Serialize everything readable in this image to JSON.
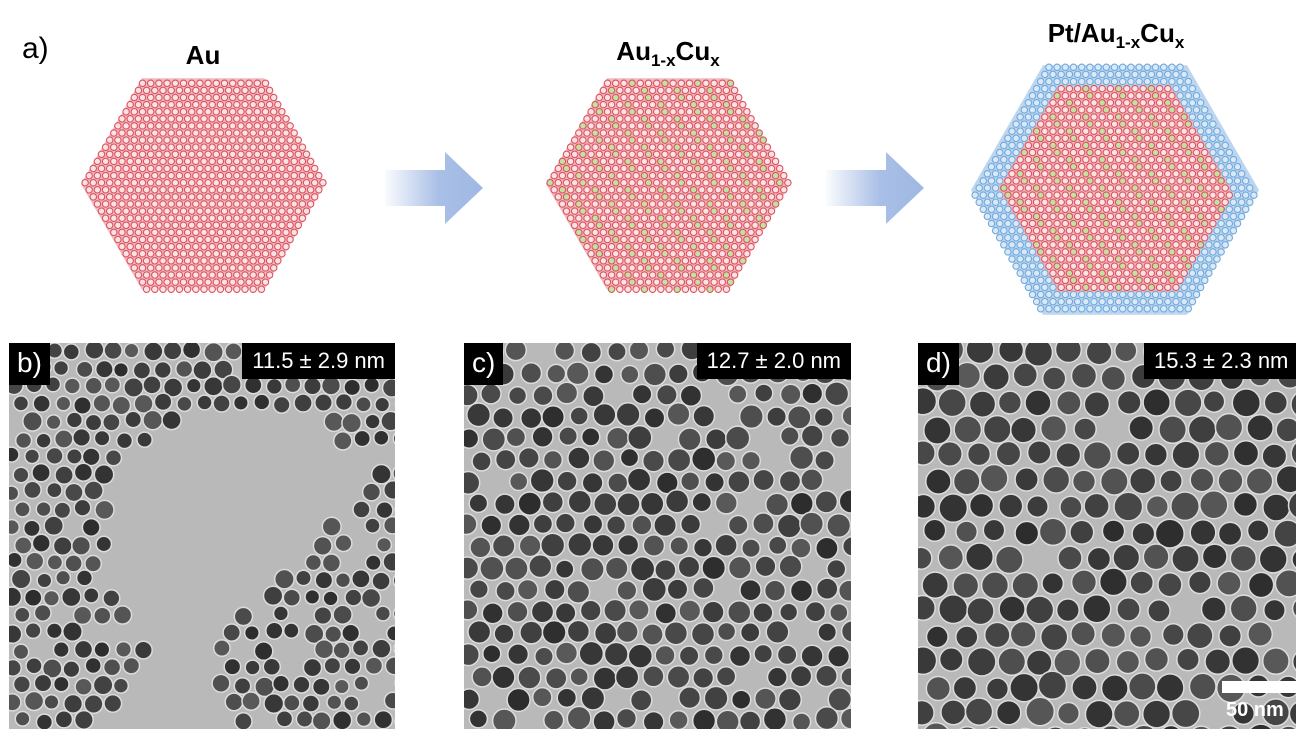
{
  "figure": {
    "panel_a_label": "a)",
    "stages": [
      {
        "base": "Au",
        "sub1": "",
        "mid": "",
        "sub2": "",
        "shell": false,
        "alloy": false
      },
      {
        "base": "Au",
        "sub1": "1-x",
        "mid": "Cu",
        "sub2": "x",
        "shell": false,
        "alloy": true
      },
      {
        "base": "Pt/Au",
        "sub1": "1-x",
        "mid": "Cu",
        "sub2": "x",
        "shell": true,
        "alloy": true
      }
    ],
    "tem_panels": [
      {
        "label": "b)",
        "size": "11.5 ± 2.9 nm"
      },
      {
        "label": "c)",
        "size": "12.7 ± 2.0 nm"
      },
      {
        "label": "d)",
        "size": "15.3 ± 2.3 nm"
      }
    ],
    "scale_bar": "50 nm",
    "colors": {
      "au_atom": "#d9535f",
      "au_fill": "#f2b8bd",
      "cu_atom": "#bfe3a0",
      "pt_atom": "#6fa8dc",
      "pt_fill": "#bcd6ef",
      "arrow": "#9fb8e3",
      "tem_background": "#b9b9b9",
      "particle": "#3e3e3e"
    }
  }
}
